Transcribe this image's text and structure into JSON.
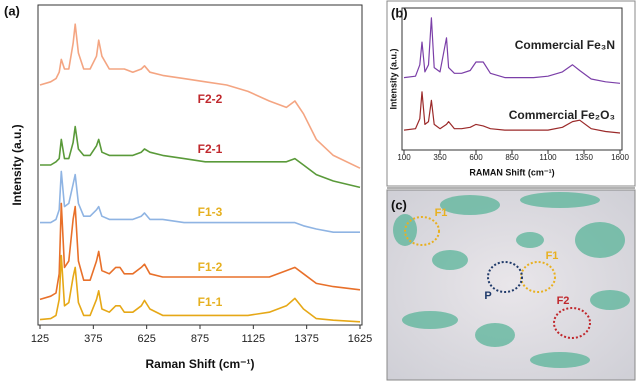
{
  "chart_data": [
    {
      "type": "line",
      "panel": "(a)",
      "xlabel": "Raman Shift (cm⁻¹)",
      "ylabel": "Intensity (a.u.)",
      "xlim": [
        125,
        1625
      ],
      "xticks": [
        125,
        375,
        625,
        875,
        1125,
        1375,
        1625
      ],
      "ylim": [
        0,
        100
      ],
      "x": [
        125,
        175,
        200,
        215,
        225,
        240,
        260,
        280,
        290,
        305,
        330,
        360,
        390,
        400,
        415,
        450,
        480,
        500,
        520,
        560,
        600,
        615,
        640,
        700,
        800,
        900,
        1000,
        1100,
        1200,
        1280,
        1320,
        1360,
        1420,
        1500,
        1625
      ],
      "series": [
        {
          "name": "F2-2",
          "color": "#f4a582",
          "label_color": "#c0282d",
          "values": [
            75,
            76,
            77,
            79,
            83,
            80,
            80,
            88,
            94,
            85,
            80,
            80,
            84,
            89,
            84,
            80,
            80,
            80,
            80,
            79,
            80,
            81,
            79,
            78,
            77,
            76,
            75,
            73,
            70,
            68,
            70,
            66,
            58,
            53,
            49
          ]
        },
        {
          "name": "F2-1",
          "color": "#5a9a3a",
          "label_color": "#c0282d",
          "values": [
            50,
            50,
            51,
            52,
            58,
            52,
            52,
            57,
            62,
            55,
            53,
            53,
            56,
            58,
            54,
            53,
            53,
            53,
            53,
            53,
            54,
            55,
            54,
            53,
            52,
            51,
            51,
            51,
            51,
            51,
            52,
            50,
            47,
            45,
            43
          ]
        },
        {
          "name": "F1-3",
          "color": "#8fb4e3",
          "label_color": "#e6b020",
          "values": [
            32,
            32,
            33,
            36,
            48,
            37,
            38,
            44,
            47,
            38,
            34,
            34,
            36,
            37,
            34,
            33,
            33,
            33,
            33,
            33,
            34,
            35,
            33,
            33,
            32,
            32,
            32,
            32,
            32,
            32,
            32,
            31,
            30,
            29,
            29
          ]
        },
        {
          "name": "F1-2",
          "color": "#e8702a",
          "label_color": "#e6b020",
          "values": [
            8,
            9,
            10,
            16,
            38,
            18,
            20,
            33,
            37,
            20,
            14,
            14,
            20,
            23,
            17,
            16,
            18,
            18,
            16,
            16,
            18,
            19,
            16,
            15,
            15,
            15,
            15,
            15,
            15,
            17,
            18,
            16,
            13,
            12,
            11
          ]
        },
        {
          "name": "F1-1",
          "color": "#e6a817",
          "label_color": "#e6b020",
          "values": [
            1.7,
            2,
            3,
            8,
            21.7,
            6,
            7,
            15,
            18,
            7,
            3,
            3,
            8,
            10.7,
            5,
            4,
            6,
            6,
            4,
            4,
            6,
            7.7,
            5,
            3,
            3,
            3,
            3,
            3,
            4,
            6,
            8.3,
            5,
            2,
            1.5,
            1
          ]
        }
      ]
    },
    {
      "type": "line",
      "panel": "(b)",
      "xlabel": "RAMAN Shift (cm⁻¹)",
      "ylabel": "Intensity (a.u.)",
      "xlim": [
        100,
        1600
      ],
      "xticks": [
        100,
        350,
        600,
        850,
        1100,
        1350,
        1600
      ],
      "ylim": [
        0,
        100
      ],
      "x": [
        100,
        180,
        210,
        225,
        245,
        270,
        290,
        310,
        350,
        395,
        410,
        450,
        500,
        560,
        600,
        650,
        700,
        800,
        900,
        1000,
        1100,
        1200,
        1270,
        1320,
        1400,
        1500,
        1600
      ],
      "series": [
        {
          "name": "Commercial Fe₃N",
          "color": "#7b3fa8",
          "values": [
            51,
            52,
            60,
            76,
            55,
            60,
            93,
            58,
            55,
            79,
            58,
            54,
            54,
            56,
            62,
            62,
            54,
            51,
            51,
            51,
            52,
            55,
            60,
            56,
            50,
            48,
            47
          ]
        },
        {
          "name": "Commercial Fe₂O₃",
          "color": "#9b2a2a",
          "values": [
            14,
            15,
            22,
            41,
            18,
            20,
            35,
            18,
            15,
            18,
            20,
            15,
            15,
            16,
            18,
            17,
            15,
            14,
            14,
            14,
            14,
            16,
            20,
            21,
            15,
            13,
            12
          ]
        }
      ]
    }
  ],
  "image_panel": {
    "panel": "(c)",
    "annotations": [
      {
        "text": "F1",
        "color": "#e8b020"
      },
      {
        "text": "F1",
        "color": "#e8b020"
      },
      {
        "text": "P",
        "color": "#1f3a6a"
      },
      {
        "text": "F2",
        "color": "#c0282d"
      }
    ]
  }
}
